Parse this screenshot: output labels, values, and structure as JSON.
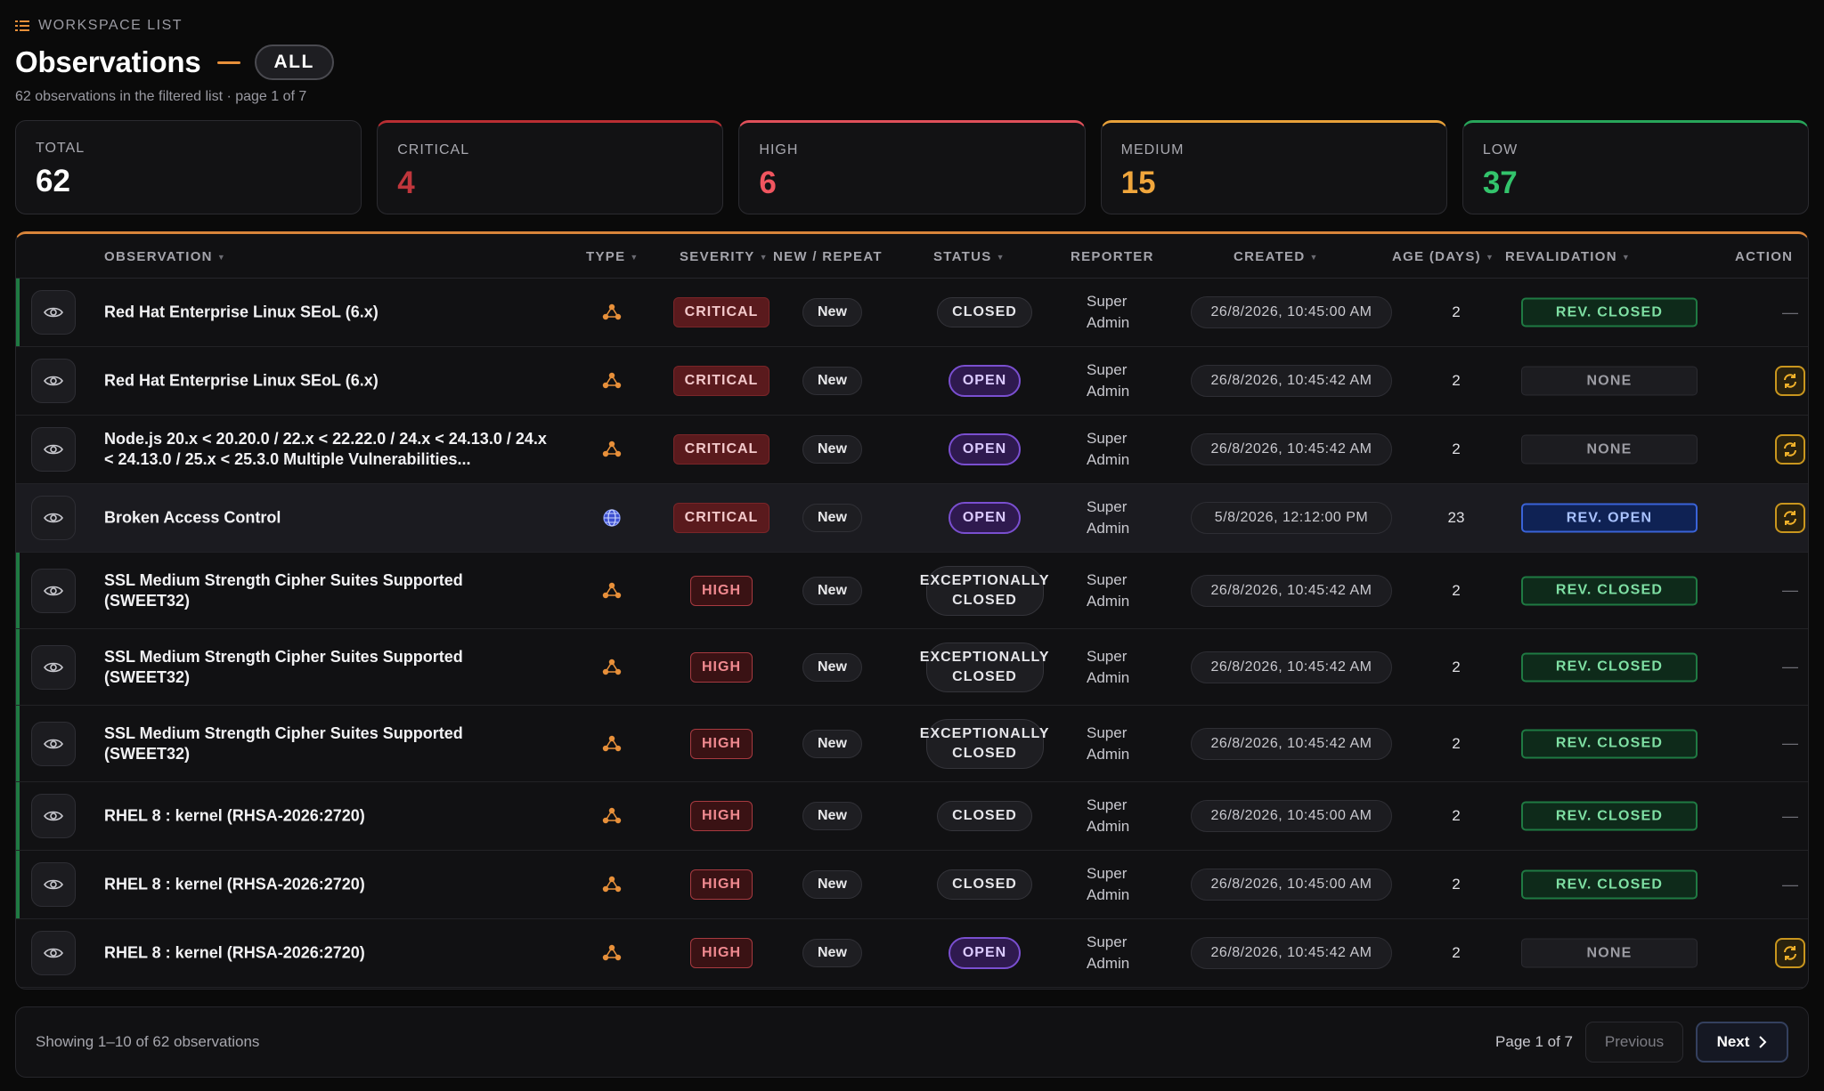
{
  "header": {
    "eyebrow": "WORKSPACE LIST",
    "title": "Observations",
    "scope": "ALL",
    "subtitle": "62 observations in the filtered list · page 1 of 7"
  },
  "stats": [
    {
      "label": "TOTAL",
      "value": "62",
      "color": "#ffffff"
    },
    {
      "label": "CRITICAL",
      "value": "4",
      "color": "#c0363c"
    },
    {
      "label": "HIGH",
      "value": "6",
      "color": "#f0555f"
    },
    {
      "label": "MEDIUM",
      "value": "15",
      "color": "#f0a63c"
    },
    {
      "label": "LOW",
      "value": "37",
      "color": "#33c46c"
    }
  ],
  "columns": {
    "observation": "OBSERVATION",
    "type": "TYPE",
    "severity": "SEVERITY",
    "new_repeat": "NEW / REPEAT",
    "status": "STATUS",
    "reporter": "REPORTER",
    "created": "CREATED",
    "age": "AGE (DAYS)",
    "revalidation": "REVALIDATION",
    "action": "ACTION"
  },
  "rows": [
    {
      "title": "Red Hat Enterprise Linux SEoL (6.x)",
      "type_icon": "network-nodes-icon",
      "severity": "CRITICAL",
      "repeat": "New",
      "status": "CLOSED",
      "reporter_line1": "Super",
      "reporter_line2": "Admin",
      "created": "26/8/2026, 10:45:00 AM",
      "age": "2",
      "revalidation": "REV. CLOSED",
      "action": "—"
    },
    {
      "title": "Red Hat Enterprise Linux SEoL (6.x)",
      "type_icon": "network-nodes-icon",
      "severity": "CRITICAL",
      "repeat": "New",
      "status": "OPEN",
      "reporter_line1": "Super",
      "reporter_line2": "Admin",
      "created": "26/8/2026, 10:45:42 AM",
      "age": "2",
      "revalidation": "NONE",
      "action": "refresh-icon"
    },
    {
      "title": "Node.js 20.x < 20.20.0 / 22.x < 22.22.0 / 24.x < 24.13.0 / 24.x < 24.13.0 / 25.x < 25.3.0 Multiple Vulnerabilities...",
      "type_icon": "network-nodes-icon",
      "severity": "CRITICAL",
      "repeat": "New",
      "status": "OPEN",
      "reporter_line1": "Super",
      "reporter_line2": "Admin",
      "created": "26/8/2026, 10:45:42 AM",
      "age": "2",
      "revalidation": "NONE",
      "action": "refresh-icon"
    },
    {
      "title": "Broken Access Control",
      "type_icon": "globe-icon",
      "severity": "CRITICAL",
      "repeat": "New",
      "status": "OPEN",
      "reporter_line1": "Super",
      "reporter_line2": "Admin",
      "created": "5/8/2026, 12:12:00 PM",
      "age": "23",
      "revalidation": "REV. OPEN",
      "action": "refresh-icon"
    },
    {
      "title": "SSL Medium Strength Cipher Suites Supported (SWEET32)",
      "type_icon": "network-nodes-icon",
      "severity": "HIGH",
      "repeat": "New",
      "status": "EXCEPTIONALLY CLOSED",
      "reporter_line1": "Super",
      "reporter_line2": "Admin",
      "created": "26/8/2026, 10:45:42 AM",
      "age": "2",
      "revalidation": "REV. CLOSED",
      "action": "—"
    },
    {
      "title": "SSL Medium Strength Cipher Suites Supported (SWEET32)",
      "type_icon": "network-nodes-icon",
      "severity": "HIGH",
      "repeat": "New",
      "status": "EXCEPTIONALLY CLOSED",
      "reporter_line1": "Super",
      "reporter_line2": "Admin",
      "created": "26/8/2026, 10:45:42 AM",
      "age": "2",
      "revalidation": "REV. CLOSED",
      "action": "—"
    },
    {
      "title": "SSL Medium Strength Cipher Suites Supported (SWEET32)",
      "type_icon": "network-nodes-icon",
      "severity": "HIGH",
      "repeat": "New",
      "status": "EXCEPTIONALLY CLOSED",
      "reporter_line1": "Super",
      "reporter_line2": "Admin",
      "created": "26/8/2026, 10:45:42 AM",
      "age": "2",
      "revalidation": "REV. CLOSED",
      "action": "—"
    },
    {
      "title": "RHEL 8 : kernel (RHSA-2026:2720)",
      "type_icon": "network-nodes-icon",
      "severity": "HIGH",
      "repeat": "New",
      "status": "CLOSED",
      "reporter_line1": "Super",
      "reporter_line2": "Admin",
      "created": "26/8/2026, 10:45:00 AM",
      "age": "2",
      "revalidation": "REV. CLOSED",
      "action": "—"
    },
    {
      "title": "RHEL 8 : kernel (RHSA-2026:2720)",
      "type_icon": "network-nodes-icon",
      "severity": "HIGH",
      "repeat": "New",
      "status": "CLOSED",
      "reporter_line1": "Super",
      "reporter_line2": "Admin",
      "created": "26/8/2026, 10:45:00 AM",
      "age": "2",
      "revalidation": "REV. CLOSED",
      "action": "—"
    },
    {
      "title": "RHEL 8 : kernel (RHSA-2026:2720)",
      "type_icon": "network-nodes-icon",
      "severity": "HIGH",
      "repeat": "New",
      "status": "OPEN",
      "reporter_line1": "Super",
      "reporter_line2": "Admin",
      "created": "26/8/2026, 10:45:42 AM",
      "age": "2",
      "revalidation": "NONE",
      "action": "refresh-icon"
    }
  ],
  "footer": {
    "showing": "Showing 1–10 of 62 observations",
    "page_info": "Page 1 of 7",
    "previous": "Previous",
    "next": "Next"
  },
  "colors": {
    "accent_orange": "#e8903a",
    "row_accent_green": "#1f7a43"
  }
}
